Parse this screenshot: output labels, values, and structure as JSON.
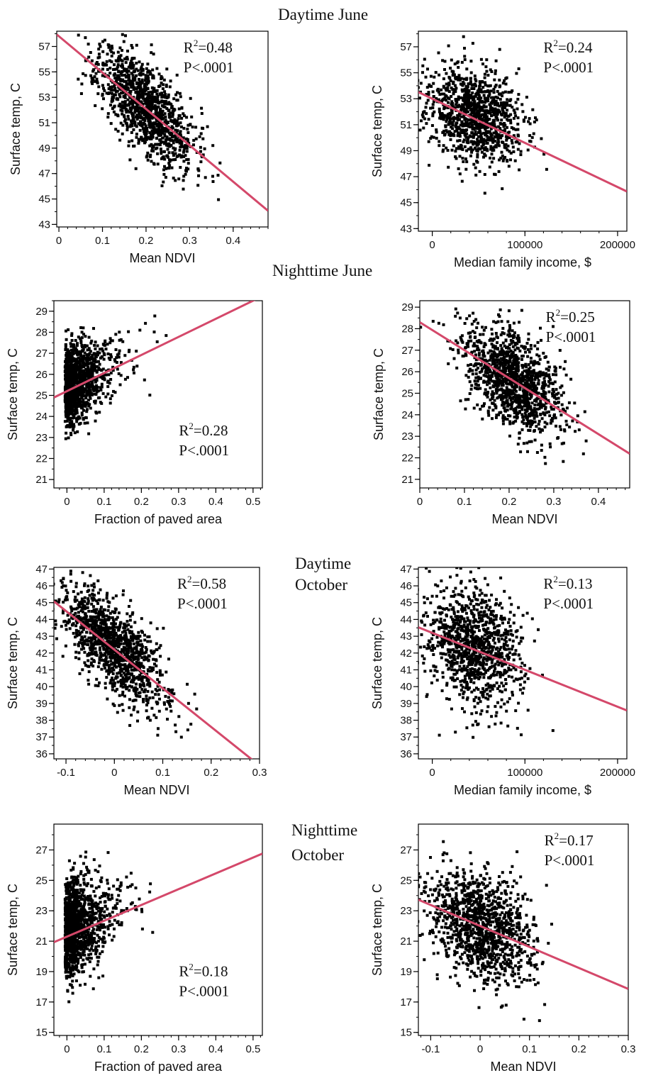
{
  "section_titles": {
    "daytime_june": "Daytime June",
    "nighttime_june": "Nighttime June",
    "daytime_october_1": "Daytime",
    "daytime_october_2": "October",
    "nighttime_october_1": "Nighttime",
    "nighttime_october_2": "October"
  },
  "colors": {
    "regression_line": "#d4486a",
    "points": "#000000"
  },
  "chart_data": [
    {
      "type": "scatter",
      "id": "djune-ndvi",
      "section": "Daytime June",
      "xlabel": "Mean NDVI",
      "ylabel": "Surface temp, C",
      "xlim": [
        -0.005,
        0.48
      ],
      "ylim": [
        42.8,
        58.2
      ],
      "xticks": [
        0,
        0.1,
        0.2,
        0.3,
        0.4
      ],
      "xtick_labels": [
        "0",
        "0.1",
        "0.2",
        "0.3",
        "0.4"
      ],
      "yticks": [
        43,
        45,
        47,
        49,
        51,
        53,
        55,
        57
      ],
      "ytick_labels": [
        "43",
        "45",
        "47",
        "49",
        "51",
        "53",
        "55",
        "57"
      ],
      "r2_label": "R",
      "r2_sup": "2",
      "r2_value": "=0.48",
      "p_text": "P<.0001",
      "stat_position": "top-right",
      "fit_line": {
        "intercept": 57.8,
        "slope": -28.6
      },
      "points": {
        "count": 1200,
        "center": [
          0.2,
          52.2
        ],
        "spread": [
          0.055,
          1.7
        ],
        "trend": -27,
        "seed": 11
      }
    },
    {
      "type": "scatter",
      "id": "djune-income",
      "section": "Daytime June",
      "xlabel": "Median family income, $",
      "ylabel": "Surface temp, C",
      "xlim": [
        -15000,
        210000
      ],
      "ylim": [
        42.8,
        58.2
      ],
      "xticks": [
        0,
        100000,
        200000
      ],
      "xtick_labels": [
        "0",
        "100000",
        "200000"
      ],
      "yticks": [
        43,
        45,
        47,
        49,
        51,
        53,
        55,
        57
      ],
      "ytick_labels": [
        "43",
        "45",
        "47",
        "49",
        "51",
        "53",
        "55",
        "57"
      ],
      "r2_label": "R",
      "r2_sup": "2",
      "r2_value": "=0.24",
      "p_text": "P<.0001",
      "stat_position": "top-right",
      "fit_line": {
        "intercept": 53.0,
        "slope": -3.4e-05
      },
      "points": {
        "count": 1050,
        "center": [
          45000,
          51.7
        ],
        "spread": [
          26000,
          1.8
        ],
        "trend": -2.2e-05,
        "seed": 23
      }
    },
    {
      "type": "scatter",
      "id": "njune-paved",
      "section": "Nighttime June",
      "xlabel": "Fraction of paved area",
      "ylabel": "Surface temp, C",
      "xlim": [
        -0.035,
        0.525
      ],
      "ylim": [
        20.6,
        29.5
      ],
      "xticks": [
        0,
        0.1,
        0.2,
        0.3,
        0.4,
        0.5
      ],
      "xtick_labels": [
        "0",
        "0.1",
        "0.2",
        "0.3",
        "0.4",
        "0.5"
      ],
      "yticks": [
        21,
        22,
        23,
        24,
        25,
        26,
        27,
        28,
        29
      ],
      "ytick_labels": [
        "21",
        "22",
        "23",
        "24",
        "25",
        "26",
        "27",
        "28",
        "29"
      ],
      "r2_label": "R",
      "r2_sup": "2",
      "r2_value": "=0.28",
      "p_text": "P<.0001",
      "stat_position": "bottom-right",
      "fit_line": {
        "intercept": 25.2,
        "slope": 8.6
      },
      "points": {
        "count": 1200,
        "center": [
          0.03,
          25.6
        ],
        "spread": [
          0.045,
          0.9
        ],
        "trend": 8,
        "seed": 37,
        "skew_x": true
      }
    },
    {
      "type": "scatter",
      "id": "njune-ndvi",
      "section": "Nighttime June",
      "xlabel": "Mean NDVI",
      "ylabel": "Surface temp, C",
      "xlim": [
        0,
        0.47
      ],
      "ylim": [
        20.6,
        29.3
      ],
      "xticks": [
        0,
        0.1,
        0.2,
        0.3,
        0.4
      ],
      "xtick_labels": [
        "0",
        "0.1",
        "0.2",
        "0.3",
        "0.4"
      ],
      "yticks": [
        21,
        22,
        23,
        24,
        25,
        26,
        27,
        28,
        29
      ],
      "ytick_labels": [
        "21",
        "22",
        "23",
        "24",
        "25",
        "26",
        "27",
        "28",
        "29"
      ],
      "r2_label": "R",
      "r2_sup": "2",
      "r2_value": "=0.25",
      "p_text": "P<.0001",
      "stat_position": "top-right",
      "fit_line": {
        "intercept": 28.3,
        "slope": -13.0
      },
      "points": {
        "count": 1200,
        "center": [
          0.21,
          25.6
        ],
        "spread": [
          0.055,
          1.1
        ],
        "trend": -11,
        "seed": 41
      }
    },
    {
      "type": "scatter",
      "id": "doct-ndvi",
      "section": "Daytime October",
      "xlabel": "Mean NDVI",
      "ylabel": "Surface temp, C",
      "xlim": [
        -0.125,
        0.3
      ],
      "ylim": [
        35.7,
        47.1
      ],
      "xticks": [
        -0.1,
        0,
        0.1,
        0.2,
        0.3
      ],
      "xtick_labels": [
        "-0.1",
        "0",
        "0.1",
        "0.2",
        "0.3"
      ],
      "yticks": [
        36,
        37,
        38,
        39,
        40,
        41,
        42,
        43,
        44,
        45,
        46,
        47
      ],
      "ytick_labels": [
        "36",
        "37",
        "38",
        "39",
        "40",
        "41",
        "42",
        "43",
        "44",
        "45",
        "46",
        "47"
      ],
      "r2_label": "R",
      "r2_sup": "2",
      "r2_value": "=0.58",
      "p_text": "P<.0001",
      "stat_position": "top-right",
      "fit_line": {
        "intercept": 42.2,
        "slope": -23.0
      },
      "points": {
        "count": 1200,
        "center": [
          0.0,
          42.3
        ],
        "spread": [
          0.055,
          1.3
        ],
        "trend": -22,
        "seed": 53
      }
    },
    {
      "type": "scatter",
      "id": "doct-income",
      "section": "Daytime October",
      "xlabel": "Median family income, $",
      "ylabel": "Surface temp, C",
      "xlim": [
        -15000,
        210000
      ],
      "ylim": [
        35.7,
        47.1
      ],
      "xticks": [
        0,
        100000,
        200000
      ],
      "xtick_labels": [
        "0",
        "100000",
        "200000"
      ],
      "yticks": [
        36,
        37,
        38,
        39,
        40,
        41,
        42,
        43,
        44,
        45,
        46,
        47
      ],
      "ytick_labels": [
        "36",
        "37",
        "38",
        "39",
        "40",
        "41",
        "42",
        "43",
        "44",
        "45",
        "46",
        "47"
      ],
      "r2_label": "R",
      "r2_sup": "2",
      "r2_value": "=0.13",
      "p_text": "P<.0001",
      "stat_position": "top-right",
      "fit_line": {
        "intercept": 43.2,
        "slope": -2.2e-05
      },
      "points": {
        "count": 1050,
        "center": [
          45000,
          42.3
        ],
        "spread": [
          25000,
          1.7
        ],
        "trend": -1.5e-05,
        "seed": 67
      }
    },
    {
      "type": "scatter",
      "id": "noct-paved",
      "section": "Nighttime October",
      "xlabel": "Fraction of paved area",
      "ylabel": "Surface temp, C",
      "xlim": [
        -0.035,
        0.525
      ],
      "ylim": [
        14.8,
        28.7
      ],
      "xticks": [
        0,
        0.1,
        0.2,
        0.3,
        0.4,
        0.5
      ],
      "xtick_labels": [
        "0",
        "0.1",
        "0.2",
        "0.3",
        "0.4",
        "0.5"
      ],
      "yticks": [
        15,
        17,
        19,
        21,
        23,
        25,
        27
      ],
      "ytick_labels": [
        "15",
        "17",
        "19",
        "21",
        "23",
        "25",
        "27"
      ],
      "r2_label": "R",
      "r2_sup": "2",
      "r2_value": "=0.18",
      "p_text": "P<.0001",
      "stat_position": "bottom-right",
      "fit_line": {
        "intercept": 21.3,
        "slope": 10.4
      },
      "points": {
        "count": 1200,
        "center": [
          0.03,
          22.0
        ],
        "spread": [
          0.045,
          1.5
        ],
        "trend": 10,
        "seed": 79,
        "skew_x": true
      }
    },
    {
      "type": "scatter",
      "id": "noct-ndvi",
      "section": "Nighttime October",
      "xlabel": "Mean NDVI",
      "ylabel": "Surface temp, C",
      "xlim": [
        -0.125,
        0.3
      ],
      "ylim": [
        14.8,
        28.7
      ],
      "xticks": [
        -0.1,
        0,
        0.1,
        0.2,
        0.3
      ],
      "xtick_labels": [
        "-0.1",
        "0",
        "0.1",
        "0.2",
        "0.3"
      ],
      "yticks": [
        15,
        17,
        19,
        21,
        23,
        25,
        27
      ],
      "ytick_labels": [
        "15",
        "17",
        "19",
        "21",
        "23",
        "25",
        "27"
      ],
      "r2_label": "R",
      "r2_sup": "2",
      "r2_value": "=0.17",
      "p_text": "P<.0001",
      "stat_position": "top-right",
      "fit_line": {
        "intercept": 22.0,
        "slope": -13.8
      },
      "points": {
        "count": 1200,
        "center": [
          0.0,
          22.0
        ],
        "spread": [
          0.055,
          1.7
        ],
        "trend": -12,
        "seed": 83
      }
    }
  ]
}
